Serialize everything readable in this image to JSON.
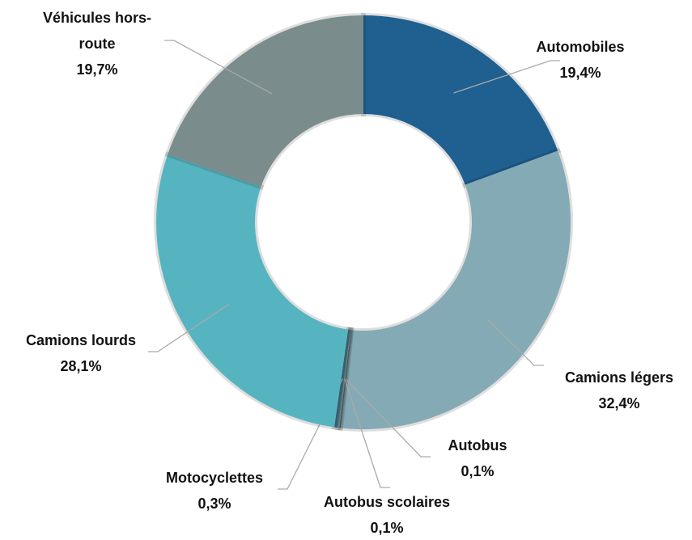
{
  "chart_data": {
    "type": "donut",
    "categories": [
      "Automobiles",
      "Camions légers",
      "Autobus",
      "Autobus scolaires",
      "Motocyclettes",
      "Camions lourds",
      "Véhicules hors-route"
    ],
    "values": [
      19.4,
      32.4,
      0.1,
      0.1,
      0.3,
      28.1,
      19.7
    ],
    "value_labels": [
      "19,4%",
      "32,4%",
      "0,1%",
      "0,1%",
      "0,3%",
      "28,1%",
      "19,7%"
    ],
    "colors": [
      "#1f6091",
      "#84aab5",
      "#5f6f78",
      "#7f8f96",
      "#3f6f80",
      "#56b4c0",
      "#7a8c8c"
    ]
  }
}
